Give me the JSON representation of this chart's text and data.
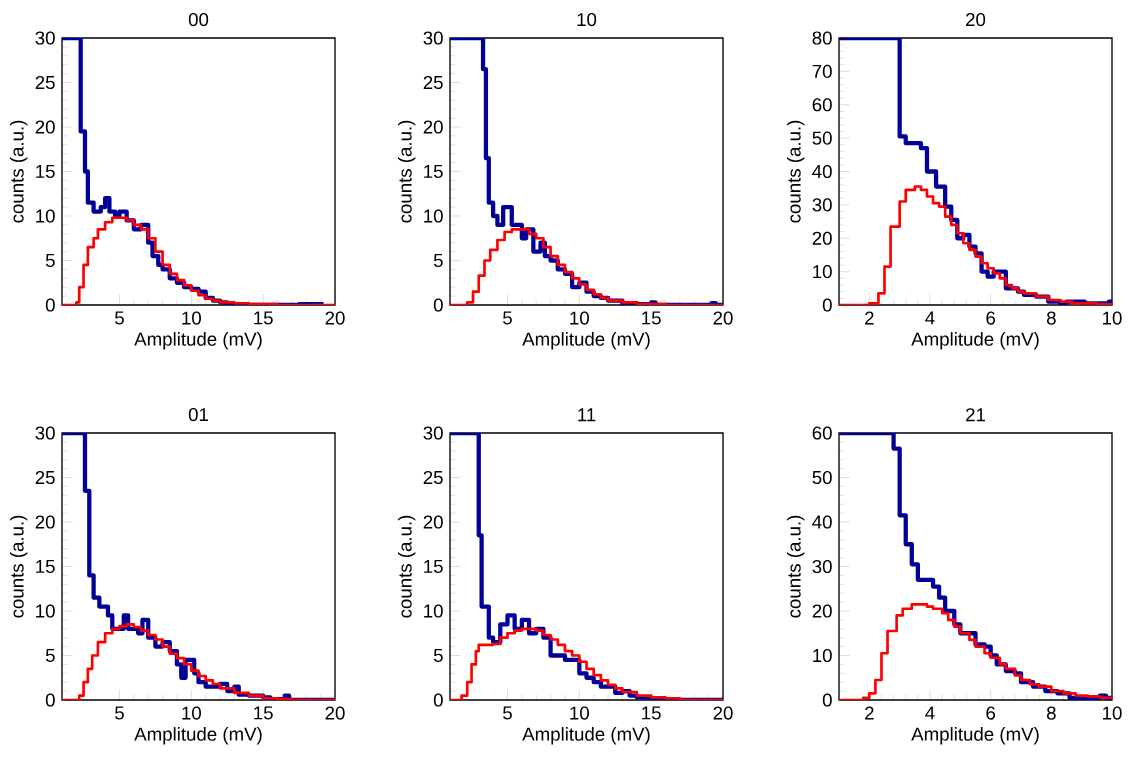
{
  "chart_data": [
    {
      "type": "step",
      "title": "00",
      "xlabel": "Amplitude (mV)",
      "ylabel": "counts (a.u.)",
      "xlim": [
        1,
        20
      ],
      "ylim": [
        0,
        30
      ],
      "xticks": [
        5,
        10,
        15,
        20
      ],
      "yticks": [
        0,
        5,
        10,
        15,
        20,
        25,
        30
      ],
      "series": [
        {
          "color": "#000099",
          "x": [
            1,
            2.3,
            2.6,
            2.8,
            3.2,
            3.7,
            4.0,
            4.3,
            4.7,
            5.0,
            5.5,
            6.0,
            6.5,
            7.0,
            7.3,
            7.7,
            8.0,
            8.5,
            9.0,
            9.5,
            10,
            10.5,
            11,
            11.5,
            12,
            12.5,
            13.5,
            17.5,
            19.2
          ],
          "values": [
            30,
            19.5,
            15,
            11.5,
            10.5,
            11,
            12,
            10.5,
            10,
            10.5,
            9.5,
            8.5,
            9,
            7,
            5.5,
            4.5,
            4,
            3,
            2.5,
            2,
            1.8,
            1.5,
            0.8,
            0.5,
            0.3,
            0.1,
            0,
            0.1,
            0.1
          ]
        },
        {
          "color": "#ff0000",
          "x": [
            1,
            2.0,
            2.2,
            2.5,
            2.8,
            3.2,
            3.5,
            4.0,
            4.5,
            5.0,
            5.5,
            6.0,
            6.5,
            7.0,
            7.5,
            8.0,
            8.5,
            9.0,
            9.5,
            10,
            10.5,
            11,
            11.5,
            12,
            13,
            14,
            16,
            20
          ],
          "values": [
            0,
            0.3,
            2,
            4.5,
            6.5,
            7.5,
            8.5,
            9.3,
            9.8,
            9.8,
            9.5,
            9,
            8.5,
            7.5,
            6,
            4.5,
            3.5,
            2.8,
            2.2,
            1.6,
            1.1,
            0.7,
            0.5,
            0.3,
            0.2,
            0.1,
            0,
            0
          ]
        }
      ]
    },
    {
      "type": "step",
      "title": "10",
      "xlabel": "Amplitude (mV)",
      "ylabel": "counts (a.u.)",
      "xlim": [
        1,
        20
      ],
      "ylim": [
        0,
        30
      ],
      "xticks": [
        5,
        10,
        15,
        20
      ],
      "yticks": [
        0,
        5,
        10,
        15,
        20,
        25,
        30
      ],
      "series": [
        {
          "color": "#000099",
          "x": [
            1,
            3.3,
            3.5,
            3.7,
            4.0,
            4.3,
            4.7,
            5.3,
            6.0,
            6.3,
            6.8,
            7.3,
            7.6,
            8.0,
            8.5,
            9.0,
            9.5,
            10,
            10.5,
            11,
            11.5,
            12,
            13,
            14,
            15,
            15.3,
            19.2,
            19.5,
            20
          ],
          "values": [
            30,
            26.5,
            16.5,
            11.5,
            10,
            9,
            11,
            9,
            7.5,
            8.5,
            6,
            7,
            5.5,
            5,
            4,
            3.5,
            2,
            2.5,
            1.5,
            1,
            0.8,
            0.5,
            0.2,
            0.1,
            0.3,
            0,
            0.2,
            0,
            0
          ]
        },
        {
          "color": "#ff0000",
          "x": [
            1,
            2.2,
            2.6,
            3.0,
            3.4,
            3.8,
            4.3,
            4.8,
            5.3,
            6.0,
            6.5,
            7.0,
            7.5,
            8.0,
            8.5,
            9.0,
            9.5,
            10,
            10.5,
            11,
            11.5,
            12,
            13,
            14,
            15,
            16,
            20
          ],
          "values": [
            0,
            0.3,
            1.5,
            3.3,
            5,
            6.2,
            7.3,
            8.2,
            8.5,
            8.5,
            8,
            7.5,
            6.5,
            5.5,
            4.5,
            3.7,
            3,
            2.3,
            1.7,
            1.2,
            0.8,
            0.5,
            0.3,
            0.1,
            0.1,
            0,
            0
          ]
        }
      ]
    },
    {
      "type": "step",
      "title": "20",
      "xlabel": "Amplitude (mV)",
      "ylabel": "counts (a.u.)",
      "xlim": [
        1,
        10
      ],
      "ylim": [
        0,
        80
      ],
      "xticks": [
        2,
        4,
        6,
        8,
        10
      ],
      "yticks": [
        0,
        10,
        20,
        30,
        40,
        50,
        60,
        70,
        80
      ],
      "series": [
        {
          "color": "#000099",
          "x": [
            1,
            3.0,
            3.2,
            3.7,
            3.9,
            4.2,
            4.5,
            4.7,
            4.9,
            5.1,
            5.3,
            5.5,
            5.7,
            5.9,
            6.1,
            6.5,
            6.9,
            7.1,
            7.5,
            7.9,
            8.3,
            8.5,
            9.1,
            9.9,
            10
          ],
          "values": [
            80,
            50.5,
            48.5,
            47,
            40,
            35.5,
            29.5,
            25.5,
            20,
            21,
            17.5,
            15.5,
            10,
            8.5,
            10,
            5,
            4,
            3,
            2.5,
            1,
            0.5,
            1,
            0.5,
            1,
            1
          ]
        },
        {
          "color": "#ff0000",
          "x": [
            1,
            2.0,
            2.3,
            2.5,
            2.7,
            3.0,
            3.2,
            3.5,
            3.7,
            3.9,
            4.1,
            4.3,
            4.5,
            4.7,
            4.9,
            5.1,
            5.3,
            5.5,
            5.7,
            5.9,
            6.1,
            6.3,
            6.5,
            6.7,
            6.9,
            7.1,
            7.5,
            7.9,
            8.3,
            8.7,
            9.5,
            10
          ],
          "values": [
            0,
            0.5,
            3.5,
            11.5,
            23.5,
            31,
            34.5,
            35.5,
            34.5,
            32.5,
            30.5,
            29.5,
            26.5,
            24,
            21.5,
            18.5,
            16.5,
            14.5,
            12.5,
            11,
            9.5,
            8,
            6,
            5,
            4,
            3.5,
            2.5,
            1.5,
            1,
            0.5,
            0.2,
            0.2
          ]
        }
      ]
    },
    {
      "type": "step",
      "title": "01",
      "xlabel": "Amplitude (mV)",
      "ylabel": "counts (a.u.)",
      "xlim": [
        1,
        20
      ],
      "ylim": [
        0,
        30
      ],
      "xticks": [
        5,
        10,
        15,
        20
      ],
      "yticks": [
        0,
        5,
        10,
        15,
        20,
        25,
        30
      ],
      "series": [
        {
          "color": "#000099",
          "x": [
            1,
            2.6,
            2.9,
            3.2,
            3.6,
            4.2,
            4.5,
            5.3,
            5.6,
            6.3,
            6.6,
            7.0,
            7.5,
            8.0,
            8.5,
            9.0,
            9.3,
            9.6,
            10.2,
            10.5,
            11,
            12,
            12.5,
            13,
            13.3,
            14,
            15,
            15.5,
            16.5,
            16.8,
            20
          ],
          "values": [
            30,
            23.5,
            14,
            11.5,
            10.5,
            9.5,
            8,
            9.5,
            8,
            7.5,
            9,
            7,
            6,
            6.5,
            5.5,
            4,
            2.5,
            4.5,
            3,
            2,
            1.5,
            1.8,
            1,
            1.5,
            0.6,
            0.5,
            0.3,
            0.1,
            0.5,
            0,
            0
          ]
        },
        {
          "color": "#ff0000",
          "x": [
            1,
            2.2,
            2.5,
            2.8,
            3.1,
            3.5,
            4,
            4.5,
            5,
            5.5,
            6,
            6.5,
            7,
            7.5,
            8,
            8.5,
            9,
            9.5,
            10,
            10.5,
            11,
            11.5,
            12,
            13,
            14,
            15,
            16,
            17,
            20
          ],
          "values": [
            0,
            0.5,
            2,
            3.5,
            5,
            6.5,
            7.5,
            8,
            8.3,
            8.5,
            8.2,
            7.8,
            7.3,
            6.8,
            6,
            5.2,
            4.7,
            4,
            3.3,
            2.7,
            2.2,
            1.8,
            1.3,
            0.8,
            0.5,
            0.2,
            0.1,
            0,
            0
          ]
        }
      ]
    },
    {
      "type": "step",
      "title": "11",
      "xlabel": "Amplitude (mV)",
      "ylabel": "counts (a.u.)",
      "xlim": [
        1,
        20
      ],
      "ylim": [
        0,
        30
      ],
      "xticks": [
        5,
        10,
        15,
        20
      ],
      "yticks": [
        0,
        5,
        10,
        15,
        20,
        25,
        30
      ],
      "series": [
        {
          "color": "#000099",
          "x": [
            1,
            3.0,
            3.2,
            3.7,
            4.0,
            4.5,
            5,
            5.5,
            6,
            6.5,
            7,
            7.5,
            8,
            8.5,
            9,
            9.5,
            10,
            10.5,
            11,
            11.5,
            12,
            12.5,
            13,
            13.5,
            14,
            15,
            16,
            16.5,
            20
          ],
          "values": [
            30,
            18.5,
            10.5,
            7,
            6.5,
            8.5,
            9.5,
            8,
            9,
            7.5,
            8,
            7,
            5,
            5,
            4.5,
            4.5,
            3,
            2.5,
            2,
            1.5,
            1.5,
            0.8,
            1,
            0.5,
            0.3,
            0,
            0.1,
            0,
            0
          ]
        },
        {
          "color": "#ff0000",
          "x": [
            1,
            1.8,
            2.2,
            2.5,
            2.8,
            3.0,
            4.0,
            4.5,
            5,
            5.5,
            6,
            6.5,
            7,
            7.5,
            8,
            8.5,
            9,
            9.5,
            10,
            10.5,
            11,
            11.5,
            12,
            12.5,
            13,
            14,
            15,
            16,
            17,
            20
          ],
          "values": [
            0,
            0.5,
            2,
            4,
            5.5,
            6.2,
            6.3,
            7,
            7.5,
            7.8,
            8,
            8,
            7.8,
            7.3,
            6.8,
            6.2,
            5.5,
            5,
            4.3,
            3.5,
            2.8,
            2.2,
            1.7,
            1.3,
            0.9,
            0.5,
            0.3,
            0.2,
            0,
            0
          ]
        }
      ]
    },
    {
      "type": "step",
      "title": "21",
      "xlabel": "Amplitude (mV)",
      "ylabel": "counts (a.u.)",
      "xlim": [
        1,
        10
      ],
      "ylim": [
        0,
        60
      ],
      "xticks": [
        2,
        4,
        6,
        8,
        10
      ],
      "yticks": [
        0,
        10,
        20,
        30,
        40,
        50,
        60
      ],
      "series": [
        {
          "color": "#000099",
          "x": [
            1,
            2.8,
            3.0,
            3.2,
            3.4,
            3.6,
            4.1,
            4.3,
            4.5,
            4.8,
            5.0,
            5.5,
            5.8,
            6.0,
            6.2,
            6.5,
            6.8,
            7.0,
            7.4,
            7.8,
            8.2,
            8.6,
            9.0,
            9.4,
            9.6,
            9.8,
            10
          ],
          "values": [
            60,
            56.5,
            41.5,
            35,
            30.5,
            27,
            25.5,
            23,
            20,
            17,
            15,
            12.5,
            12,
            10,
            8,
            6.5,
            6,
            4,
            3,
            2,
            1.5,
            0.5,
            0.3,
            0.5,
            1,
            0.5,
            0.5
          ]
        },
        {
          "color": "#ff0000",
          "x": [
            1,
            1.8,
            2.0,
            2.2,
            2.4,
            2.6,
            2.9,
            3.1,
            3.4,
            3.9,
            4.1,
            4.4,
            4.6,
            4.8,
            5.0,
            5.3,
            5.5,
            5.8,
            6.0,
            6.3,
            6.5,
            6.8,
            7.0,
            7.3,
            7.6,
            8.0,
            8.4,
            8.8,
            9.2,
            9.6,
            10
          ],
          "values": [
            0,
            0.5,
            1.5,
            4.5,
            10.5,
            15.5,
            19,
            20.5,
            21.5,
            21,
            20.5,
            19.5,
            18,
            16.5,
            15,
            13.5,
            12,
            10.5,
            9.5,
            8,
            7,
            5.5,
            4.5,
            3.5,
            3,
            2,
            1.5,
            1,
            0.8,
            0.5,
            0.5
          ]
        }
      ]
    }
  ]
}
